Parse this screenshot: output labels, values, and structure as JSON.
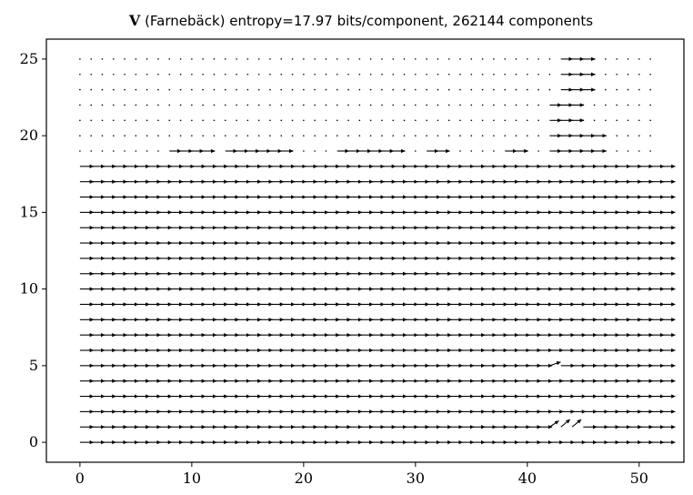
{
  "chart_data": {
    "type": "quiver",
    "title": {
      "symbol": "V",
      "text": " (Farnebäck) entropy=17.97 bits/component, 262144 components"
    },
    "xlabel": "",
    "ylabel": "",
    "xlim": [
      -3,
      54
    ],
    "ylim": [
      -1.3,
      26.3
    ],
    "xticks": [
      0,
      10,
      20,
      30,
      40,
      50
    ],
    "yticks": [
      0,
      5,
      10,
      15,
      20,
      25
    ],
    "grid": false,
    "arrow_color": "#000000",
    "grid_x": [
      0,
      52,
      1
    ],
    "grid_y": [
      0,
      25,
      1
    ],
    "default_vector": [
      1.5,
      0
    ],
    "empty_rows": [
      19,
      20,
      21,
      22,
      23,
      24,
      25
    ],
    "empty_row_x_max": 51,
    "row_19_arrows": [
      [
        8,
        11
      ],
      [
        13,
        18
      ],
      [
        23,
        26
      ],
      [
        27,
        28
      ],
      [
        31,
        32
      ],
      [
        38,
        39
      ],
      [
        42,
        46
      ]
    ],
    "upper_arrows": [
      {
        "y": 20,
        "x_from": 42,
        "x_to": 46
      },
      {
        "y": 21,
        "x_from": 42,
        "x_to": 44
      },
      {
        "y": 22,
        "x_from": 42,
        "x_to": 44
      },
      {
        "y": 23,
        "x_from": 43,
        "x_to": 45
      },
      {
        "y": 24,
        "x_from": 43,
        "x_to": 45
      },
      {
        "y": 25,
        "x_from": 43,
        "x_to": 45
      }
    ],
    "diagonal_vectors": [
      {
        "x": 42,
        "y": 1,
        "u": 1.0,
        "v": 0.5
      },
      {
        "x": 43,
        "y": 1,
        "u": 1.0,
        "v": 0.6
      },
      {
        "x": 44,
        "y": 1,
        "u": 1.0,
        "v": 0.6
      },
      {
        "x": 42,
        "y": 5,
        "u": 1.2,
        "v": 0.3
      }
    ]
  }
}
